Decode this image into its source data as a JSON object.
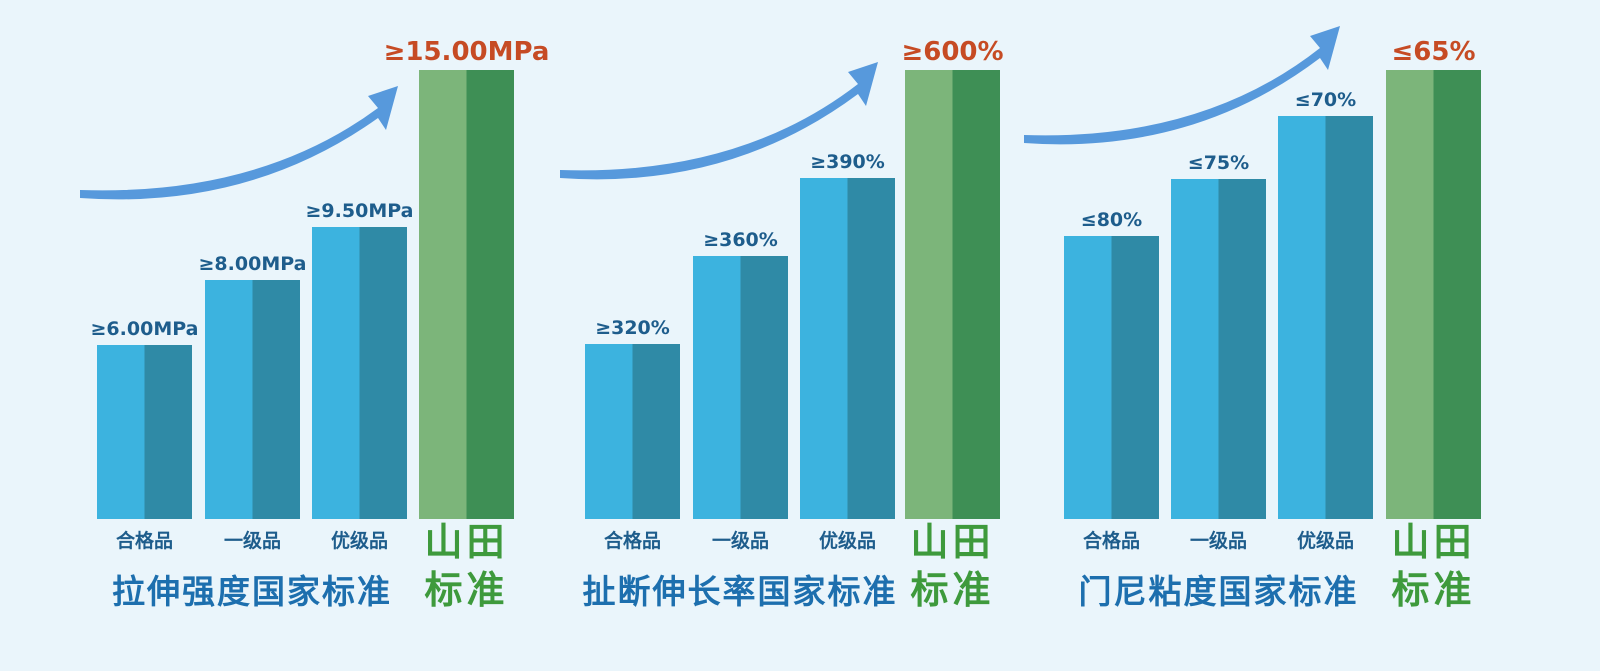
{
  "colors": {
    "background": "#eaf5fb",
    "bar_light": "#3cb3df",
    "bar_dark": "#2f8aa6",
    "brand_light": "#7cb57a",
    "brand_dark": "#3e8f55",
    "label_blue": "#1e5d8c",
    "title_blue": "#1d6fae",
    "brand_text": "#3e9a3c",
    "highlight_red": "#c64b24",
    "arrow": "#4a90d9"
  },
  "chart_data": [
    {
      "type": "bar",
      "title": "拉伸强度国家标准",
      "brand_label": [
        "山田",
        "标准"
      ],
      "categories": [
        "合格品",
        "一级品",
        "优级品",
        ""
      ],
      "values": [
        6.0,
        8.0,
        9.5,
        15.0
      ],
      "value_labels": [
        "≥6.00MPa",
        "≥8.00MPa",
        "≥9.50MPa",
        "≥15.00MPa"
      ],
      "ylim": [
        0,
        15.0
      ]
    },
    {
      "type": "bar",
      "title": "扯断伸长率国家标准",
      "brand_label": [
        "山田",
        "标准"
      ],
      "categories": [
        "合格品",
        "一级品",
        "优级品",
        ""
      ],
      "values": [
        320,
        360,
        390,
        600
      ],
      "value_labels": [
        "≥320%",
        "≥360%",
        "≥390%",
        "≥600%"
      ],
      "ylim": [
        0,
        600
      ]
    },
    {
      "type": "bar",
      "title": "门尼粘度国家标准",
      "brand_label": [
        "山田",
        "标准"
      ],
      "categories": [
        "合格品",
        "一级品",
        "优级品",
        ""
      ],
      "values": [
        80,
        75,
        70,
        65
      ],
      "value_labels": [
        "≤80%",
        "≤75%",
        "≤70%",
        "≤65%"
      ],
      "lower_is_better": true
    }
  ]
}
